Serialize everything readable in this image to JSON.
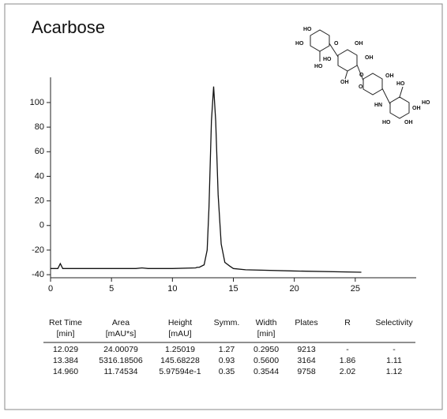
{
  "chart_data": {
    "type": "line",
    "title": "Acarbose",
    "x": [
      0,
      0.6,
      0.8,
      0.9,
      1.0,
      1.2,
      2,
      5,
      7,
      7.5,
      8,
      10,
      11.9,
      12.03,
      12.2,
      12.6,
      12.85,
      13.0,
      13.2,
      13.38,
      13.55,
      13.75,
      14.0,
      14.3,
      14.7,
      15,
      16,
      20,
      25.5
    ],
    "values": [
      -35,
      -35,
      -31,
      -33,
      -35,
      -35,
      -35,
      -35,
      -35,
      -34.5,
      -35,
      -35,
      -34.5,
      -34,
      -34,
      -32,
      -20,
      15,
      85,
      113,
      85,
      25,
      -15,
      -30,
      -33,
      -35,
      -36,
      -37,
      -38
    ],
    "color": "#111111",
    "xlim": [
      0,
      30
    ],
    "ylim": [
      -42.5,
      120.5
    ],
    "xticks": [
      0,
      5,
      10,
      15,
      20,
      25
    ],
    "yticks": [
      -40,
      -20,
      0,
      20,
      40,
      60,
      80,
      100
    ]
  },
  "structure": {
    "labels": [
      "HO",
      "HO",
      "O",
      "OH",
      "HO",
      "OH",
      "O",
      "HO",
      "OH",
      "OH",
      "O",
      "HN",
      "HO",
      "OH",
      "OH",
      "HO",
      "HO"
    ]
  },
  "table": {
    "header": [
      [
        "Ret Time",
        "[min]"
      ],
      [
        "Area",
        "[mAU*s]"
      ],
      [
        "Height",
        "[mAU]"
      ],
      [
        "Symm.",
        ""
      ],
      [
        "Width",
        "[min]"
      ],
      [
        "Plates",
        ""
      ],
      [
        "R",
        ""
      ],
      [
        "Selectivity",
        ""
      ]
    ],
    "rows": [
      [
        "12.029",
        "24.00079",
        "1.25019",
        "1.27",
        "0.2950",
        "9213",
        "-",
        "-"
      ],
      [
        "13.384",
        "5316.18506",
        "145.68228",
        "0.93",
        "0.5600",
        "3164",
        "1.86",
        "1.11"
      ],
      [
        "14.960",
        "11.74534",
        "5.97594e-1",
        "0.35",
        "0.3544",
        "9758",
        "2.02",
        "1.12"
      ]
    ]
  }
}
